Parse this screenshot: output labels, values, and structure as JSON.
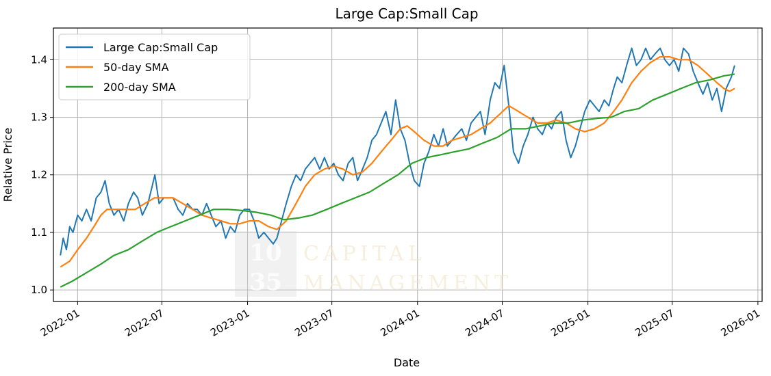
{
  "chart_data": {
    "type": "line",
    "title": "Large Cap:Small Cap",
    "xlabel": "Date",
    "ylabel": "Relative Price",
    "xlim": [
      "2021-11-10",
      "2026-01-10"
    ],
    "ylim": [
      0.98,
      1.455
    ],
    "grid": true,
    "legend_position": "top-left",
    "x_ticks": [
      "2022-01",
      "2022-07",
      "2023-01",
      "2023-07",
      "2024-01",
      "2024-07",
      "2025-01",
      "2025-07",
      "2026-01"
    ],
    "y_ticks": [
      "1.0",
      "1.1",
      "1.2",
      "1.3",
      "1.4"
    ],
    "series": [
      {
        "name": "Large Cap:Small Cap",
        "color": "#1f77b4",
        "points": [
          [
            "2021-11-25",
            1.06
          ],
          [
            "2021-12-01",
            1.09
          ],
          [
            "2021-12-08",
            1.07
          ],
          [
            "2021-12-15",
            1.11
          ],
          [
            "2021-12-22",
            1.1
          ],
          [
            "2022-01-01",
            1.13
          ],
          [
            "2022-01-10",
            1.12
          ],
          [
            "2022-01-20",
            1.14
          ],
          [
            "2022-01-30",
            1.12
          ],
          [
            "2022-02-10",
            1.16
          ],
          [
            "2022-02-20",
            1.17
          ],
          [
            "2022-03-01",
            1.19
          ],
          [
            "2022-03-10",
            1.15
          ],
          [
            "2022-03-20",
            1.13
          ],
          [
            "2022-03-30",
            1.14
          ],
          [
            "2022-04-10",
            1.12
          ],
          [
            "2022-04-20",
            1.15
          ],
          [
            "2022-05-01",
            1.17
          ],
          [
            "2022-05-10",
            1.16
          ],
          [
            "2022-05-20",
            1.13
          ],
          [
            "2022-06-01",
            1.15
          ],
          [
            "2022-06-10",
            1.18
          ],
          [
            "2022-06-16",
            1.2
          ],
          [
            "2022-06-25",
            1.15
          ],
          [
            "2022-07-05",
            1.16
          ],
          [
            "2022-07-15",
            1.16
          ],
          [
            "2022-07-25",
            1.16
          ],
          [
            "2022-08-05",
            1.14
          ],
          [
            "2022-08-15",
            1.13
          ],
          [
            "2022-08-25",
            1.15
          ],
          [
            "2022-09-05",
            1.14
          ],
          [
            "2022-09-15",
            1.14
          ],
          [
            "2022-09-25",
            1.13
          ],
          [
            "2022-10-05",
            1.15
          ],
          [
            "2022-10-15",
            1.13
          ],
          [
            "2022-10-25",
            1.11
          ],
          [
            "2022-11-05",
            1.12
          ],
          [
            "2022-11-15",
            1.09
          ],
          [
            "2022-11-25",
            1.11
          ],
          [
            "2022-12-05",
            1.1
          ],
          [
            "2022-12-15",
            1.13
          ],
          [
            "2022-12-25",
            1.14
          ],
          [
            "2023-01-05",
            1.14
          ],
          [
            "2023-01-15",
            1.12
          ],
          [
            "2023-01-25",
            1.09
          ],
          [
            "2023-02-05",
            1.1
          ],
          [
            "2023-02-15",
            1.09
          ],
          [
            "2023-02-25",
            1.08
          ],
          [
            "2023-03-05",
            1.09
          ],
          [
            "2023-03-15",
            1.12
          ],
          [
            "2023-03-25",
            1.15
          ],
          [
            "2023-04-05",
            1.18
          ],
          [
            "2023-04-15",
            1.2
          ],
          [
            "2023-04-25",
            1.19
          ],
          [
            "2023-05-05",
            1.21
          ],
          [
            "2023-05-15",
            1.22
          ],
          [
            "2023-05-25",
            1.23
          ],
          [
            "2023-06-05",
            1.21
          ],
          [
            "2023-06-15",
            1.23
          ],
          [
            "2023-06-25",
            1.21
          ],
          [
            "2023-07-05",
            1.22
          ],
          [
            "2023-07-15",
            1.2
          ],
          [
            "2023-07-25",
            1.19
          ],
          [
            "2023-08-05",
            1.22
          ],
          [
            "2023-08-15",
            1.23
          ],
          [
            "2023-08-25",
            1.19
          ],
          [
            "2023-09-05",
            1.21
          ],
          [
            "2023-09-15",
            1.23
          ],
          [
            "2023-09-25",
            1.26
          ],
          [
            "2023-10-05",
            1.27
          ],
          [
            "2023-10-15",
            1.29
          ],
          [
            "2023-10-25",
            1.31
          ],
          [
            "2023-11-05",
            1.27
          ],
          [
            "2023-11-15",
            1.33
          ],
          [
            "2023-11-25",
            1.28
          ],
          [
            "2023-12-05",
            1.26
          ],
          [
            "2023-12-15",
            1.22
          ],
          [
            "2023-12-25",
            1.19
          ],
          [
            "2024-01-05",
            1.18
          ],
          [
            "2024-01-15",
            1.22
          ],
          [
            "2024-01-25",
            1.24
          ],
          [
            "2024-02-05",
            1.27
          ],
          [
            "2024-02-15",
            1.25
          ],
          [
            "2024-02-25",
            1.28
          ],
          [
            "2024-03-05",
            1.25
          ],
          [
            "2024-03-15",
            1.26
          ],
          [
            "2024-03-25",
            1.27
          ],
          [
            "2024-04-05",
            1.28
          ],
          [
            "2024-04-15",
            1.26
          ],
          [
            "2024-04-25",
            1.29
          ],
          [
            "2024-05-05",
            1.3
          ],
          [
            "2024-05-15",
            1.31
          ],
          [
            "2024-05-25",
            1.27
          ],
          [
            "2024-06-05",
            1.33
          ],
          [
            "2024-06-15",
            1.36
          ],
          [
            "2024-06-25",
            1.35
          ],
          [
            "2024-07-05",
            1.39
          ],
          [
            "2024-07-15",
            1.32
          ],
          [
            "2024-07-25",
            1.24
          ],
          [
            "2024-08-05",
            1.22
          ],
          [
            "2024-08-15",
            1.25
          ],
          [
            "2024-08-25",
            1.27
          ],
          [
            "2024-09-05",
            1.3
          ],
          [
            "2024-09-15",
            1.28
          ],
          [
            "2024-09-25",
            1.27
          ],
          [
            "2024-10-05",
            1.29
          ],
          [
            "2024-10-15",
            1.28
          ],
          [
            "2024-10-25",
            1.3
          ],
          [
            "2024-11-05",
            1.31
          ],
          [
            "2024-11-15",
            1.26
          ],
          [
            "2024-11-25",
            1.23
          ],
          [
            "2024-12-05",
            1.25
          ],
          [
            "2024-12-15",
            1.28
          ],
          [
            "2024-12-25",
            1.31
          ],
          [
            "2025-01-05",
            1.33
          ],
          [
            "2025-01-15",
            1.32
          ],
          [
            "2025-01-25",
            1.31
          ],
          [
            "2025-02-05",
            1.33
          ],
          [
            "2025-02-15",
            1.32
          ],
          [
            "2025-02-25",
            1.35
          ],
          [
            "2025-03-05",
            1.37
          ],
          [
            "2025-03-15",
            1.36
          ],
          [
            "2025-03-25",
            1.39
          ],
          [
            "2025-04-05",
            1.42
          ],
          [
            "2025-04-15",
            1.39
          ],
          [
            "2025-04-25",
            1.4
          ],
          [
            "2025-05-05",
            1.42
          ],
          [
            "2025-05-15",
            1.4
          ],
          [
            "2025-05-25",
            1.41
          ],
          [
            "2025-06-05",
            1.42
          ],
          [
            "2025-06-15",
            1.4
          ],
          [
            "2025-06-25",
            1.39
          ],
          [
            "2025-07-05",
            1.4
          ],
          [
            "2025-07-15",
            1.38
          ],
          [
            "2025-07-25",
            1.42
          ],
          [
            "2025-08-05",
            1.41
          ],
          [
            "2025-08-15",
            1.38
          ],
          [
            "2025-08-25",
            1.36
          ],
          [
            "2025-09-05",
            1.34
          ],
          [
            "2025-09-15",
            1.36
          ],
          [
            "2025-09-25",
            1.33
          ],
          [
            "2025-10-05",
            1.35
          ],
          [
            "2025-10-15",
            1.31
          ],
          [
            "2025-10-25",
            1.35
          ],
          [
            "2025-11-05",
            1.37
          ],
          [
            "2025-11-12",
            1.39
          ]
        ]
      },
      {
        "name": "50-day SMA",
        "color": "#ff7f0e",
        "points": [
          [
            "2021-11-25",
            1.04
          ],
          [
            "2021-12-15",
            1.05
          ],
          [
            "2022-01-01",
            1.07
          ],
          [
            "2022-01-20",
            1.09
          ],
          [
            "2022-02-05",
            1.11
          ],
          [
            "2022-02-20",
            1.13
          ],
          [
            "2022-03-05",
            1.14
          ],
          [
            "2022-03-25",
            1.14
          ],
          [
            "2022-04-15",
            1.14
          ],
          [
            "2022-05-05",
            1.14
          ],
          [
            "2022-05-25",
            1.15
          ],
          [
            "2022-06-15",
            1.16
          ],
          [
            "2022-07-05",
            1.16
          ],
          [
            "2022-07-25",
            1.16
          ],
          [
            "2022-08-15",
            1.15
          ],
          [
            "2022-09-05",
            1.14
          ],
          [
            "2022-09-25",
            1.13
          ],
          [
            "2022-10-15",
            1.125
          ],
          [
            "2022-11-05",
            1.12
          ],
          [
            "2022-11-25",
            1.115
          ],
          [
            "2022-12-15",
            1.115
          ],
          [
            "2023-01-05",
            1.12
          ],
          [
            "2023-01-25",
            1.12
          ],
          [
            "2023-02-15",
            1.11
          ],
          [
            "2023-03-05",
            1.105
          ],
          [
            "2023-03-25",
            1.12
          ],
          [
            "2023-04-15",
            1.15
          ],
          [
            "2023-05-05",
            1.18
          ],
          [
            "2023-05-25",
            1.2
          ],
          [
            "2023-06-15",
            1.21
          ],
          [
            "2023-07-05",
            1.215
          ],
          [
            "2023-07-25",
            1.21
          ],
          [
            "2023-08-15",
            1.2
          ],
          [
            "2023-09-05",
            1.205
          ],
          [
            "2023-09-25",
            1.22
          ],
          [
            "2023-10-15",
            1.24
          ],
          [
            "2023-11-05",
            1.26
          ],
          [
            "2023-11-25",
            1.28
          ],
          [
            "2023-12-10",
            1.285
          ],
          [
            "2023-12-25",
            1.275
          ],
          [
            "2024-01-15",
            1.26
          ],
          [
            "2024-02-05",
            1.25
          ],
          [
            "2024-02-25",
            1.25
          ],
          [
            "2024-03-15",
            1.26
          ],
          [
            "2024-04-05",
            1.265
          ],
          [
            "2024-04-25",
            1.27
          ],
          [
            "2024-05-15",
            1.28
          ],
          [
            "2024-06-05",
            1.29
          ],
          [
            "2024-06-25",
            1.305
          ],
          [
            "2024-07-15",
            1.32
          ],
          [
            "2024-08-05",
            1.31
          ],
          [
            "2024-08-25",
            1.3
          ],
          [
            "2024-09-15",
            1.29
          ],
          [
            "2024-10-05",
            1.29
          ],
          [
            "2024-10-25",
            1.295
          ],
          [
            "2024-11-15",
            1.29
          ],
          [
            "2024-12-05",
            1.28
          ],
          [
            "2024-12-25",
            1.275
          ],
          [
            "2025-01-15",
            1.28
          ],
          [
            "2025-02-05",
            1.29
          ],
          [
            "2025-02-25",
            1.31
          ],
          [
            "2025-03-15",
            1.33
          ],
          [
            "2025-04-05",
            1.36
          ],
          [
            "2025-04-25",
            1.38
          ],
          [
            "2025-05-15",
            1.395
          ],
          [
            "2025-06-05",
            1.405
          ],
          [
            "2025-06-25",
            1.405
          ],
          [
            "2025-07-15",
            1.4
          ],
          [
            "2025-08-05",
            1.4
          ],
          [
            "2025-08-25",
            1.39
          ],
          [
            "2025-09-15",
            1.375
          ],
          [
            "2025-10-05",
            1.36
          ],
          [
            "2025-10-20",
            1.35
          ],
          [
            "2025-11-01",
            1.345
          ],
          [
            "2025-11-12",
            1.35
          ]
        ]
      },
      {
        "name": "200-day SMA",
        "color": "#2ca02c",
        "points": [
          [
            "2021-11-25",
            1.005
          ],
          [
            "2021-12-20",
            1.015
          ],
          [
            "2022-01-20",
            1.03
          ],
          [
            "2022-02-20",
            1.045
          ],
          [
            "2022-03-20",
            1.06
          ],
          [
            "2022-04-20",
            1.07
          ],
          [
            "2022-05-20",
            1.085
          ],
          [
            "2022-06-20",
            1.1
          ],
          [
            "2022-07-20",
            1.11
          ],
          [
            "2022-08-20",
            1.12
          ],
          [
            "2022-09-20",
            1.13
          ],
          [
            "2022-10-20",
            1.14
          ],
          [
            "2022-11-20",
            1.14
          ],
          [
            "2022-12-20",
            1.138
          ],
          [
            "2023-01-20",
            1.135
          ],
          [
            "2023-02-20",
            1.13
          ],
          [
            "2023-03-20",
            1.122
          ],
          [
            "2023-04-20",
            1.125
          ],
          [
            "2023-05-20",
            1.13
          ],
          [
            "2023-06-20",
            1.14
          ],
          [
            "2023-07-20",
            1.15
          ],
          [
            "2023-08-20",
            1.16
          ],
          [
            "2023-09-20",
            1.17
          ],
          [
            "2023-10-20",
            1.185
          ],
          [
            "2023-11-20",
            1.2
          ],
          [
            "2023-12-20",
            1.22
          ],
          [
            "2024-01-20",
            1.23
          ],
          [
            "2024-02-20",
            1.235
          ],
          [
            "2024-03-20",
            1.24
          ],
          [
            "2024-04-20",
            1.245
          ],
          [
            "2024-05-20",
            1.255
          ],
          [
            "2024-06-20",
            1.265
          ],
          [
            "2024-07-20",
            1.28
          ],
          [
            "2024-08-20",
            1.28
          ],
          [
            "2024-09-20",
            1.285
          ],
          [
            "2024-10-20",
            1.29
          ],
          [
            "2024-11-20",
            1.29
          ],
          [
            "2024-12-20",
            1.295
          ],
          [
            "2025-01-20",
            1.298
          ],
          [
            "2025-02-20",
            1.3
          ],
          [
            "2025-03-20",
            1.31
          ],
          [
            "2025-04-20",
            1.315
          ],
          [
            "2025-05-20",
            1.33
          ],
          [
            "2025-06-20",
            1.34
          ],
          [
            "2025-07-20",
            1.35
          ],
          [
            "2025-08-20",
            1.36
          ],
          [
            "2025-09-20",
            1.365
          ],
          [
            "2025-10-20",
            1.372
          ],
          [
            "2025-11-12",
            1.375
          ]
        ]
      }
    ]
  },
  "watermark": {
    "number_top": "10",
    "number_bottom": "35",
    "word_top": "CAPITAL",
    "word_bottom": "MANAGEMENT"
  }
}
